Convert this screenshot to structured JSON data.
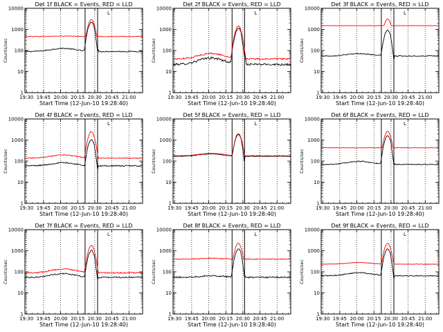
{
  "figure": {
    "grid_rows": 3,
    "grid_cols": 3,
    "colors": {
      "events": "#000000",
      "lld": "#ff0000",
      "frame": "#000000"
    }
  },
  "chart_data": [
    {
      "type": "line",
      "title": "Det 1f BLACK = Events, RED = LLD",
      "xlabel": "Start Time (12-Jun-10 19:28:40)",
      "ylabel": "Counts/sec",
      "yscale": "log",
      "ylim": [
        1,
        10000
      ],
      "x_ticks": [
        "19:30",
        "19:45",
        "20:00",
        "20:15",
        "20:30",
        "20:45",
        "21:00"
      ],
      "y_ticks": [
        "1",
        "10",
        "100",
        "1000",
        "10000"
      ],
      "marker_label": "L",
      "flare_peak_time": "20:27",
      "series": [
        {
          "key": "events",
          "color": "#000000",
          "baseline": 90,
          "bump": 1.4,
          "peak": 2200,
          "noise": 0.06
        },
        {
          "key": "lld",
          "color": "#ff0000",
          "baseline": 460,
          "bump": 1.05,
          "peak": 2800,
          "noise": 0.03
        }
      ]
    },
    {
      "type": "line",
      "title": "Det 2f BLACK = Events, RED = LLD",
      "xlabel": "Start Time (12-Jun-10 19:28:40)",
      "ylabel": "Counts/sec",
      "yscale": "log",
      "ylim": [
        1,
        10000
      ],
      "x_ticks": [
        "19:30",
        "19:45",
        "20:00",
        "20:15",
        "20:30",
        "20:45",
        "21:00"
      ],
      "y_ticks": [
        "1",
        "10",
        "100",
        "1000",
        "10000"
      ],
      "marker_label": "L",
      "flare_peak_time": "20:26",
      "series": [
        {
          "key": "events",
          "color": "#000000",
          "baseline": 22,
          "bump": 2.0,
          "peak": 1100,
          "noise": 0.12
        },
        {
          "key": "lld",
          "color": "#ff0000",
          "baseline": 40,
          "bump": 1.8,
          "peak": 1400,
          "noise": 0.08
        }
      ]
    },
    {
      "type": "line",
      "title": "Det 3f BLACK = Events, RED = LLD",
      "xlabel": "Start Time (12-Jun-10 19:28:40)",
      "ylabel": "Counts/sec",
      "yscale": "log",
      "ylim": [
        1,
        10000
      ],
      "x_ticks": [
        "19:30",
        "19:45",
        "20:00",
        "20:15",
        "20:30",
        "20:45",
        "21:00"
      ],
      "y_ticks": [
        "1",
        "10",
        "100",
        "1000",
        "10000"
      ],
      "marker_label": "L",
      "flare_peak_time": "20:27",
      "series": [
        {
          "key": "events",
          "color": "#000000",
          "baseline": 55,
          "bump": 1.3,
          "peak": 900,
          "noise": 0.05
        },
        {
          "key": "lld",
          "color": "#ff0000",
          "baseline": 1500,
          "bump": 1.0,
          "peak": 2800,
          "noise": 0.01
        }
      ]
    },
    {
      "type": "line",
      "title": "Det 4f BLACK = Events, RED = LLD",
      "xlabel": "Start Time (12-Jun-10 19:28:40)",
      "ylabel": "Counts/sec",
      "yscale": "log",
      "ylim": [
        1,
        10000
      ],
      "x_ticks": [
        "19:30",
        "19:45",
        "20:00",
        "20:15",
        "20:30",
        "20:45",
        "21:00"
      ],
      "y_ticks": [
        "1",
        "10",
        "100",
        "1000",
        "10000"
      ],
      "marker_label": "L",
      "flare_peak_time": "20:27",
      "series": [
        {
          "key": "events",
          "color": "#000000",
          "baseline": 60,
          "bump": 1.4,
          "peak": 1000,
          "noise": 0.07
        },
        {
          "key": "lld",
          "color": "#ff0000",
          "baseline": 140,
          "bump": 1.4,
          "peak": 2500,
          "noise": 0.05
        }
      ]
    },
    {
      "type": "line",
      "title": "Det 5f BLACK = Events, RED = LLD",
      "xlabel": "Start Time (12-Jun-10 19:28:40)",
      "ylabel": "Counts/sec",
      "yscale": "log",
      "ylim": [
        1,
        10000
      ],
      "x_ticks": [
        "19:30",
        "19:45",
        "20:00",
        "20:15",
        "20:30",
        "20:45",
        "21:00"
      ],
      "y_ticks": [
        "1",
        "10",
        "100",
        "1000",
        "10000"
      ],
      "marker_label": "L",
      "flare_peak_time": "20:26",
      "series": [
        {
          "key": "events",
          "color": "#000000",
          "baseline": 170,
          "bump": 1.3,
          "peak": 1800,
          "noise": 0.03
        },
        {
          "key": "lld",
          "color": "#ff0000",
          "baseline": 180,
          "bump": 1.3,
          "peak": 2000,
          "noise": 0.02
        }
      ]
    },
    {
      "type": "line",
      "title": "Det 6f BLACK = Events, RED = LLD",
      "xlabel": "Start Time (12-Jun-10 19:28:40)",
      "ylabel": "Counts/sec",
      "yscale": "log",
      "ylim": [
        1,
        10000
      ],
      "x_ticks": [
        "19:30",
        "19:45",
        "20:00",
        "20:15",
        "20:30",
        "20:45",
        "21:00"
      ],
      "y_ticks": [
        "1",
        "10",
        "100",
        "1000",
        "10000"
      ],
      "marker_label": "L",
      "flare_peak_time": "20:27",
      "series": [
        {
          "key": "events",
          "color": "#000000",
          "baseline": 70,
          "bump": 1.4,
          "peak": 1600,
          "noise": 0.05
        },
        {
          "key": "lld",
          "color": "#ff0000",
          "baseline": 430,
          "bump": 1.0,
          "peak": 2500,
          "noise": 0.02
        }
      ]
    },
    {
      "type": "line",
      "title": "Det 7f BLACK = Events, RED = LLD",
      "xlabel": "Start Time (12-Jun-10 19:28:40)",
      "ylabel": "Counts/sec",
      "yscale": "log",
      "ylim": [
        1,
        10000
      ],
      "x_ticks": [
        "19:30",
        "19:45",
        "20:00",
        "20:15",
        "20:30",
        "20:45",
        "21:00"
      ],
      "y_ticks": [
        "1",
        "10",
        "100",
        "1000",
        "10000"
      ],
      "marker_label": "L",
      "flare_peak_time": "20:27",
      "series": [
        {
          "key": "events",
          "color": "#000000",
          "baseline": 55,
          "bump": 1.5,
          "peak": 1000,
          "noise": 0.07
        },
        {
          "key": "lld",
          "color": "#ff0000",
          "baseline": 90,
          "bump": 1.5,
          "peak": 1800,
          "noise": 0.07
        }
      ]
    },
    {
      "type": "line",
      "title": "Det 8f BLACK = Events, RED = LLD",
      "xlabel": "Start Time (12-Jun-10 19:28:40)",
      "ylabel": "Counts/sec",
      "yscale": "log",
      "ylim": [
        1,
        10000
      ],
      "x_ticks": [
        "19:30",
        "19:45",
        "20:00",
        "20:15",
        "20:30",
        "20:45",
        "21:00"
      ],
      "y_ticks": [
        "1",
        "10",
        "100",
        "1000",
        "10000"
      ],
      "marker_label": "L",
      "flare_peak_time": "20:26",
      "series": [
        {
          "key": "events",
          "color": "#000000",
          "baseline": 55,
          "bump": 1.2,
          "peak": 1200,
          "noise": 0.08
        },
        {
          "key": "lld",
          "color": "#ff0000",
          "baseline": 400,
          "bump": 1.1,
          "peak": 2200,
          "noise": 0.05
        }
      ]
    },
    {
      "type": "line",
      "title": "Det 9f BLACK = Events, RED = LLD",
      "xlabel": "Start Time (12-Jun-10 19:28:40)",
      "ylabel": "Counts/sec",
      "yscale": "log",
      "ylim": [
        1,
        10000
      ],
      "x_ticks": [
        "19:30",
        "19:45",
        "20:00",
        "20:15",
        "20:30",
        "20:45",
        "21:00"
      ],
      "y_ticks": [
        "1",
        "10",
        "100",
        "1000",
        "10000"
      ],
      "marker_label": "L",
      "flare_peak_time": "20:27",
      "series": [
        {
          "key": "events",
          "color": "#000000",
          "baseline": 65,
          "bump": 1.4,
          "peak": 1200,
          "noise": 0.05
        },
        {
          "key": "lld",
          "color": "#ff0000",
          "baseline": 230,
          "bump": 1.2,
          "peak": 2200,
          "noise": 0.03
        }
      ]
    }
  ]
}
